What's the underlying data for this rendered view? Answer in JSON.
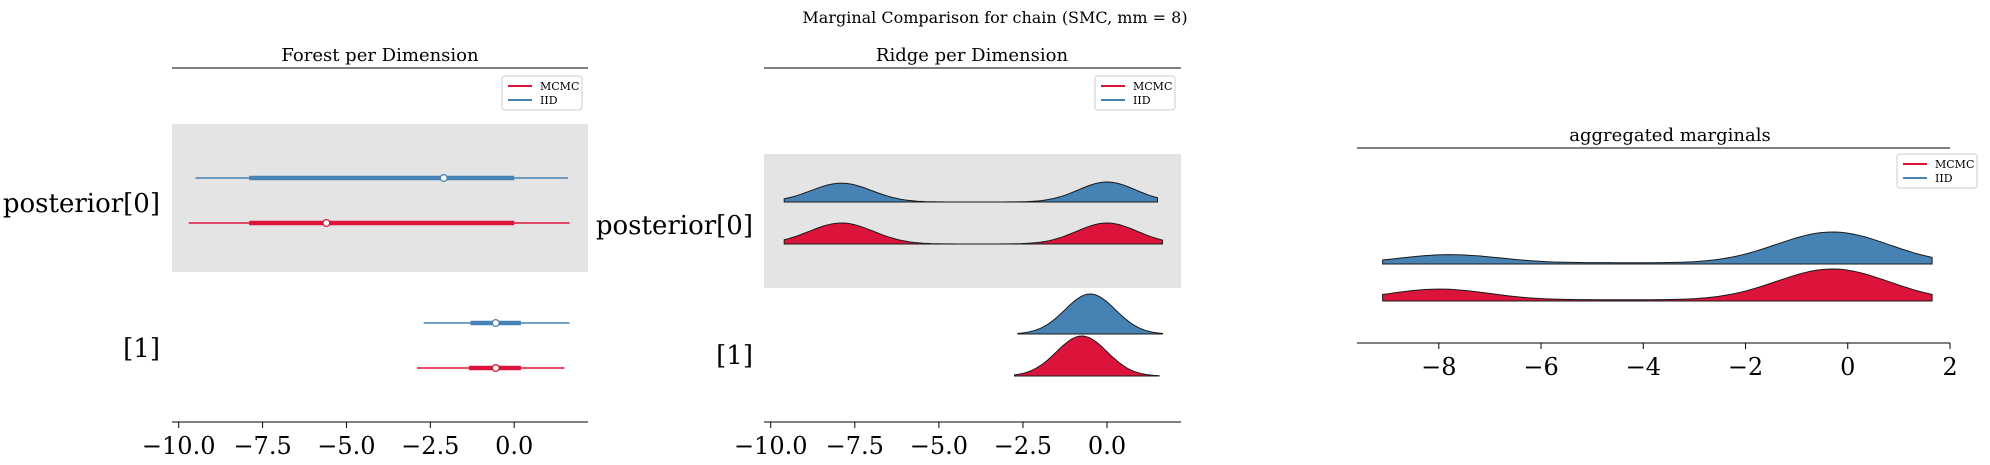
{
  "figure": {
    "suptitle": "Marginal Comparison for chain (SMC, mm = 8)"
  },
  "colors": {
    "mcmc": "#dc143c",
    "iid": "#4682b4",
    "band": "#e4e4e4"
  },
  "legend": [
    {
      "name": "MCMC",
      "color": "#dc143c"
    },
    {
      "name": "IID",
      "color": "#4682b4"
    }
  ],
  "chart_data": [
    {
      "type": "forest",
      "title": "Forest per Dimension",
      "xlim": [
        -10.2,
        2.2
      ],
      "xticks": [
        -10.0,
        -7.5,
        -5.0,
        -2.5,
        0.0
      ],
      "xtick_labels": [
        "−10.0",
        "−7.5",
        "−5.0",
        "−2.5",
        "0.0"
      ],
      "rows": [
        {
          "label": "posterior[0]",
          "series": [
            {
              "name": "IID",
              "hdi94": [
                -9.5,
                1.6
              ],
              "hdi50": [
                -7.9,
                0.0
              ],
              "point": -2.1
            },
            {
              "name": "MCMC",
              "hdi94": [
                -9.7,
                1.65
              ],
              "hdi50": [
                -7.9,
                0.0
              ],
              "point": -5.6
            }
          ]
        },
        {
          "label": "[1]",
          "series": [
            {
              "name": "IID",
              "hdi94": [
                -2.7,
                1.65
              ],
              "hdi50": [
                -1.3,
                0.2
              ],
              "point": -0.55
            },
            {
              "name": "MCMC",
              "hdi94": [
                -2.9,
                1.5
              ],
              "hdi50": [
                -1.35,
                0.2
              ],
              "point": -0.55
            }
          ]
        }
      ]
    },
    {
      "type": "ridge",
      "title": "Ridge per Dimension",
      "xlim": [
        -10.2,
        2.2
      ],
      "xticks": [
        -10.0,
        -7.5,
        -5.0,
        -2.5,
        0.0
      ],
      "xtick_labels": [
        "−10.0",
        "−7.5",
        "−5.0",
        "−2.5",
        "0.0"
      ],
      "rows": [
        {
          "label": "posterior[0]",
          "series": [
            {
              "name": "IID",
              "range": [
                -9.6,
                1.5
              ],
              "modes": [
                {
                  "mu": -7.9,
                  "sd": 0.9,
                  "w": 0.8
                },
                {
                  "mu": 0.0,
                  "sd": 0.85,
                  "w": 0.85
                }
              ]
            },
            {
              "name": "MCMC",
              "range": [
                -9.6,
                1.65
              ],
              "modes": [
                {
                  "mu": -7.9,
                  "sd": 0.95,
                  "w": 1.0
                },
                {
                  "mu": 0.0,
                  "sd": 0.9,
                  "w": 1.0
                }
              ]
            }
          ]
        },
        {
          "label": "[1]",
          "series": [
            {
              "name": "IID",
              "range": [
                -2.65,
                1.65
              ],
              "modes": [
                {
                  "mu": -0.5,
                  "sd": 0.75,
                  "w": 1.0
                }
              ]
            },
            {
              "name": "MCMC",
              "range": [
                -2.75,
                1.55
              ],
              "modes": [
                {
                  "mu": -0.75,
                  "sd": 0.75,
                  "w": 1.0
                }
              ]
            }
          ]
        }
      ]
    },
    {
      "type": "area",
      "title": "aggregated marginals",
      "xlim": [
        -9.6,
        2.0
      ],
      "xticks": [
        -8,
        -6,
        -4,
        -2,
        0,
        2
      ],
      "xtick_labels": [
        "−8",
        "−6",
        "−4",
        "−2",
        "0",
        "2"
      ],
      "series": [
        {
          "name": "IID",
          "range": [
            -9.1,
            1.65
          ],
          "modes": [
            {
              "mu": -7.8,
              "sd": 1.0,
              "w": 0.29
            },
            {
              "mu": -0.3,
              "sd": 1.1,
              "w": 1.0
            },
            {
              "mu": -4.5,
              "sd": 1.5,
              "w": 0.04
            }
          ]
        },
        {
          "name": "MCMC",
          "range": [
            -9.1,
            1.65
          ],
          "modes": [
            {
              "mu": -8.0,
              "sd": 1.0,
              "w": 0.37
            },
            {
              "mu": -0.3,
              "sd": 1.1,
              "w": 1.0
            },
            {
              "mu": -4.5,
              "sd": 1.5,
              "w": 0.04
            }
          ]
        }
      ]
    }
  ]
}
